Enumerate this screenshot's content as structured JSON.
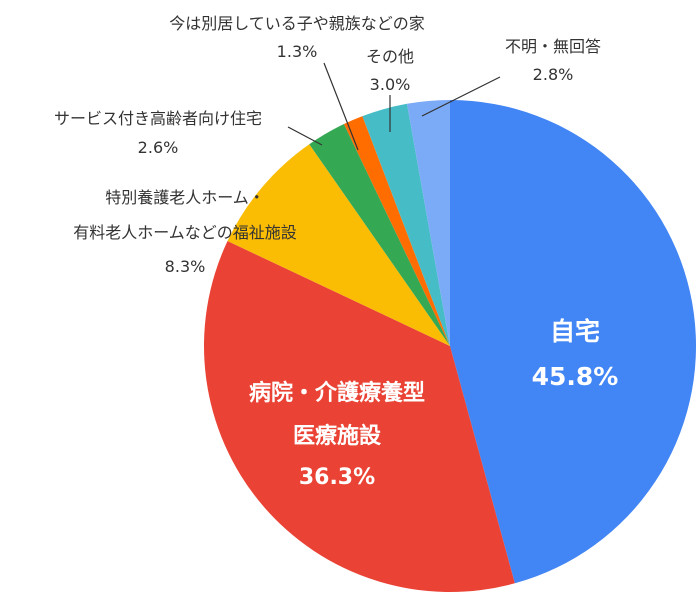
{
  "chart_data": {
    "type": "pie",
    "title": "",
    "slices": [
      {
        "label": "自宅",
        "value": 45.8,
        "value_label": "45.8%",
        "color": "#4285f4"
      },
      {
        "label": "病院・介護療養型医療施設",
        "value": 36.3,
        "value_label": "36.3%",
        "color": "#ea4335"
      },
      {
        "label": "特別養護老人ホーム・有料老人ホームなどの福祉施設",
        "value": 8.3,
        "value_label": "8.3%",
        "color": "#fbbc04"
      },
      {
        "label": "サービス付き高齢者向け住宅",
        "value": 2.6,
        "value_label": "2.6%",
        "color": "#34a853"
      },
      {
        "label": "今は別居している子や親族などの家",
        "value": 1.3,
        "value_label": "1.3%",
        "color": "#ff6d01"
      },
      {
        "label": "その他",
        "value": 3.0,
        "value_label": "3.0%",
        "color": "#46bdc6"
      },
      {
        "label": "不明・無回答",
        "value": 2.8,
        "value_label": "2.8%",
        "color": "#7baaf7"
      }
    ]
  },
  "labels": {
    "home": {
      "name": "自宅",
      "pct": "45.8%"
    },
    "hospital": {
      "name_line1": "病院・介護療養型",
      "name_line2": "医療施設",
      "pct": "36.3%"
    },
    "welfare": {
      "name_line1": "特別養護老人ホーム・",
      "name_line2": "有料老人ホームなどの福祉施設",
      "pct": "8.3%"
    },
    "serviced": {
      "name": "サービス付き高齢者向け住宅",
      "pct": "2.6%"
    },
    "relatives": {
      "name": "今は別居している子や親族などの家",
      "pct": "1.3%"
    },
    "other": {
      "name": "その他",
      "pct": "3.0%"
    },
    "unknown": {
      "name": "不明・無回答",
      "pct": "2.8%"
    }
  }
}
